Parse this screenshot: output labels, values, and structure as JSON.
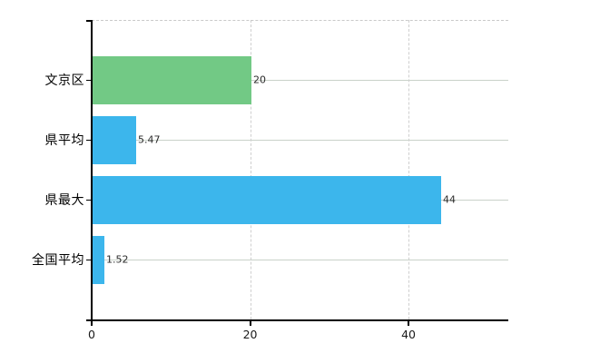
{
  "chart_data": {
    "type": "bar",
    "orientation": "horizontal",
    "title": "",
    "xlabel": "",
    "ylabel": "",
    "categories": [
      "文京区",
      "県平均",
      "県最大",
      "全国平均"
    ],
    "values": [
      20,
      5.47,
      44,
      1.52
    ],
    "value_labels": [
      "20",
      "5.47",
      "44",
      "1.52"
    ],
    "bar_colors": [
      "#72c985",
      "#3cb6ec",
      "#3cb6ec",
      "#3cb6ec"
    ],
    "xlim": [
      0,
      52.6
    ],
    "xticks": [
      0,
      20,
      40
    ],
    "xtick_labels": [
      "0",
      "20",
      "40"
    ],
    "grid": true,
    "legend": false
  },
  "colors": {
    "background": "#ffffff",
    "axis": "#000000",
    "gridline_h": "#c9d2c9",
    "gridline_v": "#cfcfcf",
    "plot_border": "#c9c9c9",
    "category_text": "#000000",
    "value_text": "#2b2b2b",
    "tick_text": "#1a1a1a"
  }
}
